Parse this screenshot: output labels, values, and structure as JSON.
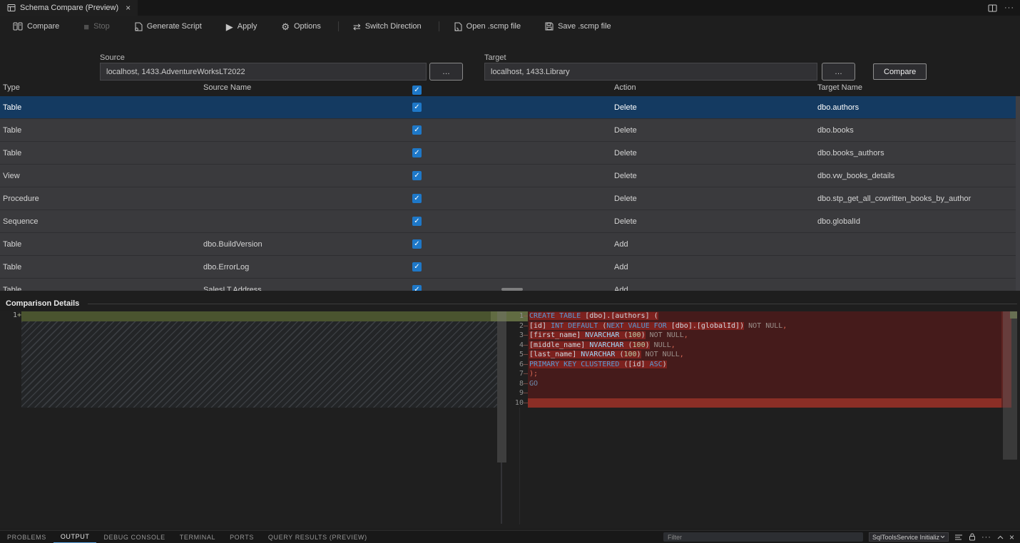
{
  "tab": {
    "title": "Schema Compare (Preview)",
    "close": "×"
  },
  "editor_actions": {
    "more": "···"
  },
  "toolbar": {
    "compare": "Compare",
    "stop": "Stop",
    "generate_script": "Generate Script",
    "apply": "Apply",
    "options": "Options",
    "switch_direction": "Switch Direction",
    "open_scmp": "Open .scmp file",
    "save_scmp": "Save .scmp file",
    "apply_glyph": "▶",
    "stop_glyph": "■",
    "options_glyph": "⚙",
    "switch_glyph": "⇄"
  },
  "compare_bar": {
    "source_label": "Source",
    "source_value": "localhost, 1433.AdventureWorksLT2022",
    "target_label": "Target",
    "target_value": "localhost, 1433.Library",
    "browse_label": "…",
    "compare_button": "Compare"
  },
  "grid": {
    "columns": [
      "Type",
      "Source Name",
      "Action",
      "Target Name"
    ],
    "checkbox_glyph": "✓",
    "rows": [
      {
        "type": "Table",
        "source_name": "",
        "checked": true,
        "action": "Delete",
        "target_name": "dbo.authors",
        "selected": true
      },
      {
        "type": "Table",
        "source_name": "",
        "checked": true,
        "action": "Delete",
        "target_name": "dbo.books"
      },
      {
        "type": "Table",
        "source_name": "",
        "checked": true,
        "action": "Delete",
        "target_name": "dbo.books_authors"
      },
      {
        "type": "View",
        "source_name": "",
        "checked": true,
        "action": "Delete",
        "target_name": "dbo.vw_books_details"
      },
      {
        "type": "Procedure",
        "source_name": "",
        "checked": true,
        "action": "Delete",
        "target_name": "dbo.stp_get_all_cowritten_books_by_author"
      },
      {
        "type": "Sequence",
        "source_name": "",
        "checked": true,
        "action": "Delete",
        "target_name": "dbo.globalId"
      },
      {
        "type": "Table",
        "source_name": "dbo.BuildVersion",
        "checked": true,
        "action": "Add",
        "target_name": ""
      },
      {
        "type": "Table",
        "source_name": "dbo.ErrorLog",
        "checked": true,
        "action": "Add",
        "target_name": ""
      },
      {
        "type": "Table",
        "source_name": "SalesLT.Address",
        "checked": true,
        "action": "Add",
        "target_name": ""
      }
    ]
  },
  "comparison": {
    "title": "Comparison Details",
    "left_line": {
      "num": "1",
      "marker": "+"
    },
    "right_lines": [
      {
        "num": "1",
        "marker": "–",
        "tokens": [
          {
            "t": "CREATE TABLE",
            "c": "kw",
            "h": true
          },
          {
            "t": " ",
            "c": "pl",
            "h": true
          },
          {
            "t": "[dbo].[authors]",
            "c": "id",
            "h": true
          },
          {
            "t": " (",
            "c": "pl",
            "h": true
          }
        ]
      },
      {
        "num": "2",
        "marker": "–",
        "tokens": [
          {
            "t": "[id]",
            "c": "id",
            "h": true
          },
          {
            "t": " ",
            "c": "pl",
            "h": true
          },
          {
            "t": "INT DEFAULT",
            "c": "kw",
            "h": true
          },
          {
            "t": " (",
            "c": "pl",
            "h": true
          },
          {
            "t": "NEXT VALUE FOR",
            "c": "kw",
            "h": true
          },
          {
            "t": " ",
            "c": "pl",
            "h": true
          },
          {
            "t": "[dbo].[globalId]",
            "c": "id",
            "h": true
          },
          {
            "t": ")",
            "c": "pl",
            "h": true
          },
          {
            "t": " NOT NULL",
            "c": "dim"
          },
          {
            "t": ",",
            "c": "comma"
          }
        ]
      },
      {
        "num": "3",
        "marker": "–",
        "tokens": [
          {
            "t": "[first_name]",
            "c": "id",
            "h": true
          },
          {
            "t": " ",
            "c": "pl",
            "h": true
          },
          {
            "t": "NVARCHAR",
            "c": "kw2",
            "h": true
          },
          {
            "t": " (",
            "c": "pl",
            "h": true
          },
          {
            "t": "100",
            "c": "num",
            "h": true
          },
          {
            "t": ")",
            "c": "pl",
            "h": true
          },
          {
            "t": " NOT NULL",
            "c": "dim"
          },
          {
            "t": ",",
            "c": "comma"
          }
        ]
      },
      {
        "num": "4",
        "marker": "–",
        "tokens": [
          {
            "t": "[middle_name]",
            "c": "id",
            "h": true
          },
          {
            "t": " ",
            "c": "pl",
            "h": true
          },
          {
            "t": "NVARCHAR",
            "c": "kw2",
            "h": true
          },
          {
            "t": " (",
            "c": "pl",
            "h": true
          },
          {
            "t": "100",
            "c": "num",
            "h": true
          },
          {
            "t": ")",
            "c": "pl",
            "h": true
          },
          {
            "t": " NULL",
            "c": "dim"
          },
          {
            "t": ",",
            "c": "comma"
          }
        ]
      },
      {
        "num": "5",
        "marker": "–",
        "tokens": [
          {
            "t": "[last_name]",
            "c": "id",
            "h": true
          },
          {
            "t": " ",
            "c": "pl",
            "h": true
          },
          {
            "t": "NVARCHAR",
            "c": "kw2",
            "h": true
          },
          {
            "t": " (",
            "c": "pl",
            "h": true
          },
          {
            "t": "100",
            "c": "num",
            "h": true
          },
          {
            "t": ")",
            "c": "pl",
            "h": true
          },
          {
            "t": " NOT NULL",
            "c": "dim"
          },
          {
            "t": ",",
            "c": "comma"
          }
        ]
      },
      {
        "num": "6",
        "marker": "–",
        "tokens": [
          {
            "t": "PRIMARY KEY CLUSTERED",
            "c": "kw",
            "h": true
          },
          {
            "t": " (",
            "c": "pl",
            "h": true
          },
          {
            "t": "[id]",
            "c": "id",
            "h": true
          },
          {
            "t": " ",
            "c": "pl",
            "h": true
          },
          {
            "t": "ASC",
            "c": "kw",
            "h": true
          },
          {
            "t": ")",
            "c": "pl",
            "h": true
          }
        ]
      },
      {
        "num": "7",
        "marker": "–",
        "tokens": [
          {
            "t": ");",
            "c": "comma"
          }
        ]
      },
      {
        "num": "8",
        "marker": "–",
        "tokens": [
          {
            "t": "GO",
            "c": "go"
          }
        ]
      },
      {
        "num": "9",
        "marker": "–",
        "tokens": []
      },
      {
        "num": "10",
        "marker": "–",
        "tokens": [],
        "bright": true
      }
    ]
  },
  "panel": {
    "tabs": [
      {
        "label": "PROBLEMS"
      },
      {
        "label": "OUTPUT",
        "active": true
      },
      {
        "label": "DEBUG CONSOLE"
      },
      {
        "label": "TERMINAL"
      },
      {
        "label": "PORTS"
      },
      {
        "label": "QUERY RESULTS (PREVIEW)"
      }
    ],
    "filter_placeholder": "Filter",
    "channel_dropdown": "SqlToolsService Initializ",
    "more": "···",
    "close": "×"
  },
  "colors": {
    "accent_blue": "#1e78c8",
    "selected_row": "#143a61",
    "row_background": "#3a3a3d",
    "removed_line": "#451b1b",
    "removed_word": "#7c211e",
    "removed_strip": "#8b2e26",
    "added_line": "#4a542f",
    "keyword_blue": "#569cd6",
    "panel_tab_underline": "#5ba3e0"
  }
}
